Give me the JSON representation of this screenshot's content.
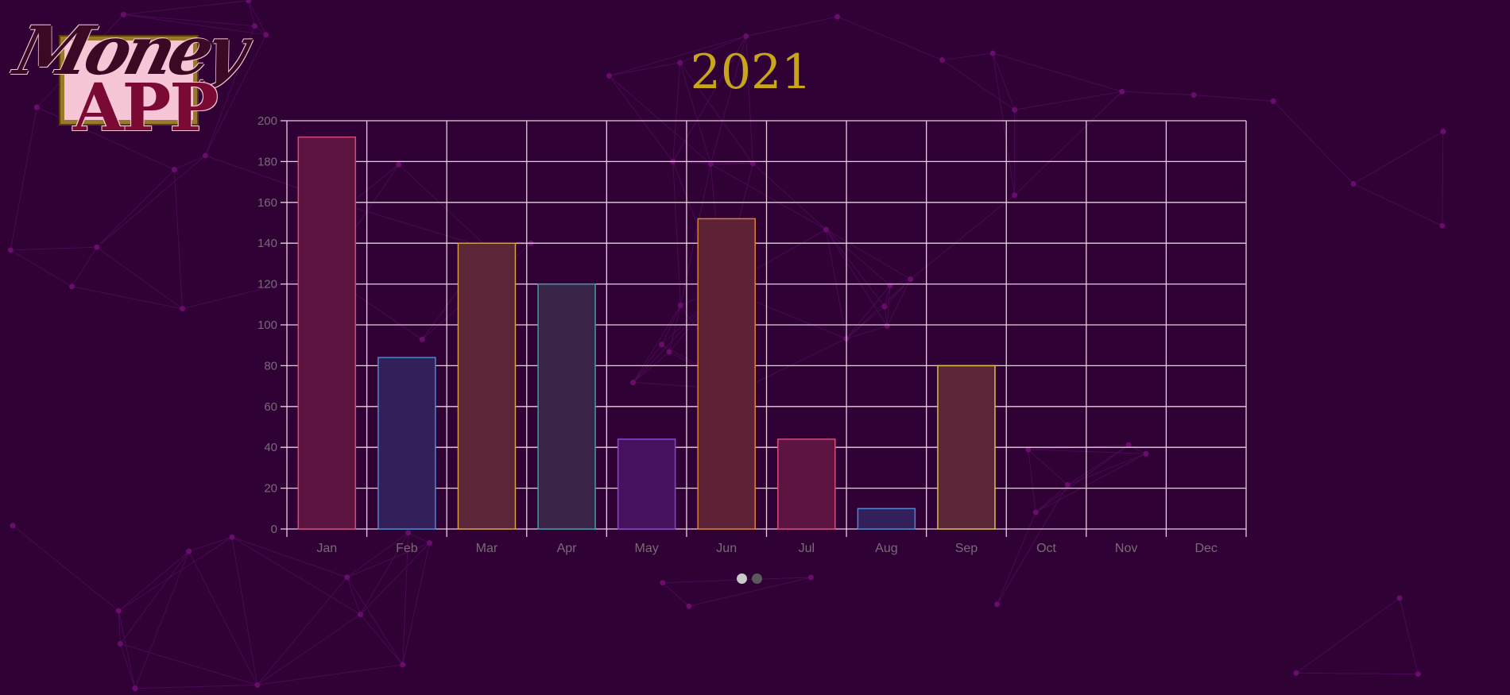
{
  "logo": {
    "line1": "Money",
    "line2": "APP"
  },
  "chart_data": {
    "type": "bar",
    "title": "2021",
    "categories": [
      "Jan",
      "Feb",
      "Mar",
      "Apr",
      "May",
      "Jun",
      "Jul",
      "Aug",
      "Sep",
      "Oct",
      "Nov",
      "Dec"
    ],
    "values": [
      192,
      84,
      140,
      120,
      44,
      152,
      44,
      10,
      80,
      0,
      0,
      0
    ],
    "ylim": [
      0,
      200
    ],
    "yticks": [
      0,
      20,
      40,
      60,
      80,
      100,
      120,
      140,
      160,
      180,
      200
    ],
    "grid": true,
    "legend": "none",
    "bar_colors": [
      {
        "fill": "#5e1440",
        "stroke": "#d64a7a"
      },
      {
        "fill": "#33205a",
        "stroke": "#4a88d0"
      },
      {
        "fill": "#5a2638",
        "stroke": "#d8a040"
      },
      {
        "fill": "#3a2448",
        "stroke": "#3aa0a8"
      },
      {
        "fill": "#461260",
        "stroke": "#8a44d0"
      },
      {
        "fill": "#5e2236",
        "stroke": "#d8803a"
      },
      {
        "fill": "#5e1440",
        "stroke": "#d64a7a"
      },
      {
        "fill": "#33205a",
        "stroke": "#4a88d0"
      },
      {
        "fill": "#5a2638",
        "stroke": "#d8c040"
      },
      {
        "fill": "#3a2448",
        "stroke": "#3aa0a8"
      },
      {
        "fill": "#461260",
        "stroke": "#8a44d0"
      },
      {
        "fill": "#5e2236",
        "stroke": "#d8803a"
      }
    ]
  },
  "colors": {
    "background": "#2f0135",
    "title": "#c8a61a",
    "grid": "#e8cfe0",
    "tick_label": "#7a6a78"
  },
  "pager": {
    "pages": 2,
    "active_page": 1
  }
}
